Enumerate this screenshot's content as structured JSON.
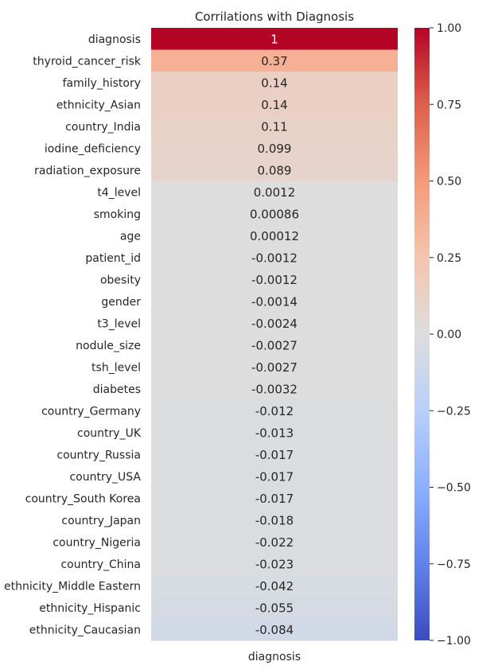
{
  "chart_data": {
    "type": "heatmap",
    "title": "Corrilations with Diagnosis",
    "x_categories": [
      "diagnosis"
    ],
    "y_categories": [
      "diagnosis",
      "thyroid_cancer_risk",
      "family_history",
      "ethnicity_Asian",
      "country_India",
      "iodine_deficiency",
      "radiation_exposure",
      "t4_level",
      "smoking",
      "age",
      "patient_id",
      "obesity",
      "gender",
      "t3_level",
      "nodule_size",
      "tsh_level",
      "diabetes",
      "country_Germany",
      "country_UK",
      "country_Russia",
      "country_USA",
      "country_South Korea",
      "country_Japan",
      "country_Nigeria",
      "country_China",
      "ethnicity_Middle Eastern",
      "ethnicity_Hispanic",
      "ethnicity_Caucasian"
    ],
    "values": [
      1,
      0.37,
      0.14,
      0.14,
      0.11,
      0.099,
      0.089,
      0.0012,
      0.00086,
      0.00012,
      -0.0012,
      -0.0012,
      -0.0014,
      -0.0024,
      -0.0027,
      -0.0027,
      -0.0032,
      -0.012,
      -0.013,
      -0.017,
      -0.017,
      -0.017,
      -0.018,
      -0.022,
      -0.023,
      -0.042,
      -0.055,
      -0.084
    ],
    "value_labels": [
      "1",
      "0.37",
      "0.14",
      "0.14",
      "0.11",
      "0.099",
      "0.089",
      "0.0012",
      "0.00086",
      "0.00012",
      "-0.0012",
      "-0.0012",
      "-0.0014",
      "-0.0024",
      "-0.0027",
      "-0.0027",
      "-0.0032",
      "-0.012",
      "-0.013",
      "-0.017",
      "-0.017",
      "-0.017",
      "-0.018",
      "-0.022",
      "-0.023",
      "-0.042",
      "-0.055",
      "-0.084"
    ],
    "colorbar": {
      "range": [
        -1.0,
        1.0
      ],
      "ticks": [
        1.0,
        0.75,
        0.5,
        0.25,
        0.0,
        -0.25,
        -0.5,
        -0.75,
        -1.0
      ],
      "tick_labels": [
        "1.00",
        "0.75",
        "0.50",
        "0.25",
        "0.00",
        "−0.25",
        "−0.50",
        "−0.75",
        "−1.00"
      ],
      "colormap": "coolwarm"
    },
    "grid": false
  }
}
